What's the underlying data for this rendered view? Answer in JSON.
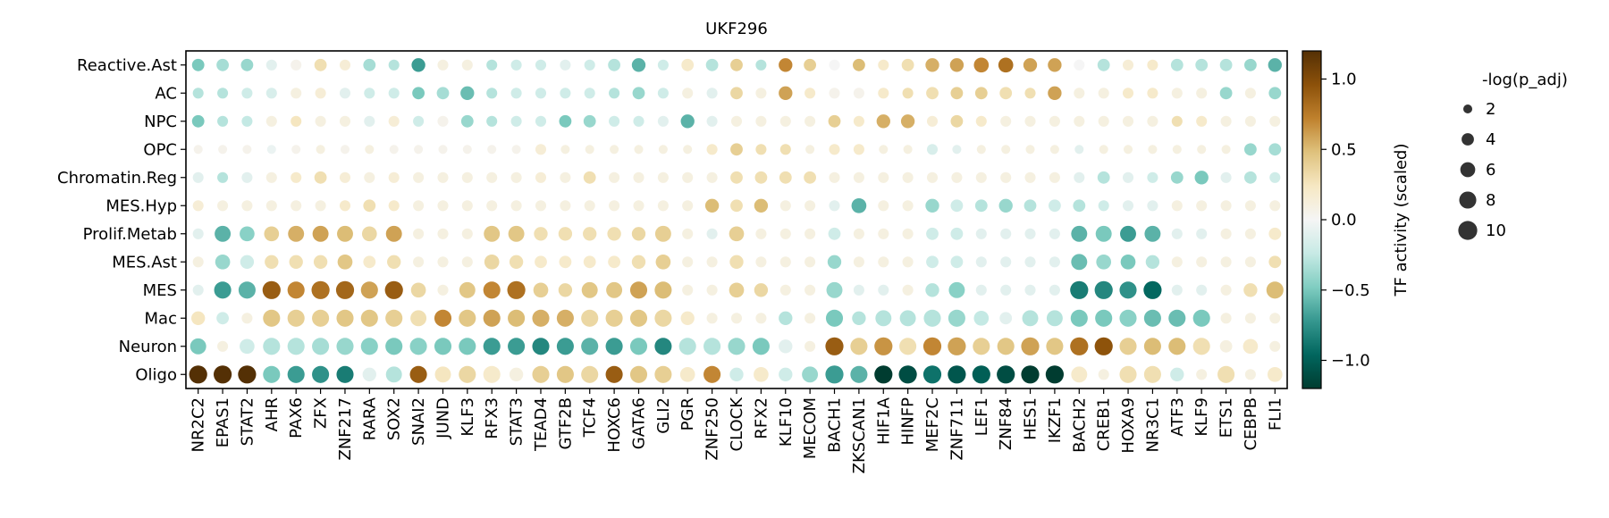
{
  "chart_data": {
    "type": "dotplot",
    "title": "UKF296",
    "x_categories": [
      "NR2C2",
      "EPAS1",
      "STAT2",
      "AHR",
      "PAX6",
      "ZFX",
      "ZNF217",
      "RARA",
      "SOX2",
      "SNAI2",
      "JUND",
      "KLF3",
      "RFX3",
      "STAT3",
      "TEAD4",
      "GTF2B",
      "TCF4",
      "HOXC6",
      "GATA6",
      "GLI2",
      "PGR",
      "ZNF250",
      "CLOCK",
      "RFX2",
      "KLF10",
      "MECOM",
      "BACH1",
      "ZKSCAN1",
      "HIF1A",
      "HINFP",
      "MEF2C",
      "ZNF711",
      "LEF1",
      "ZNF84",
      "HES1",
      "IKZF1",
      "BACH2",
      "CREB1",
      "HOXA9",
      "NR3C1",
      "ATF3",
      "KLF9",
      "ETS1",
      "CEBPB",
      "FLI1"
    ],
    "y_categories": [
      "Reactive.Ast",
      "AC",
      "NPC",
      "OPC",
      "Chromatin.Reg",
      "MES.Hyp",
      "Prolif.Metab",
      "MES.Ast",
      "MES",
      "Mac",
      "Neuron",
      "Oligo"
    ],
    "colorbar": {
      "label": "TF activity (scaled)",
      "range": [
        -1.2,
        1.2
      ],
      "ticks": [
        1.0,
        0.5,
        0.0,
        -0.5,
        -1.0
      ],
      "tick_labels": [
        "1.0",
        "0.5",
        "0.0",
        "−0.5",
        "−1.0"
      ],
      "colormap": "BrBG_r",
      "colors": [
        "#003c30",
        "#01665e",
        "#35978f",
        "#80cdc1",
        "#c7eae5",
        "#f5f5f5",
        "#f6e8c3",
        "#dfc27d",
        "#bf812d",
        "#8c510a",
        "#543005"
      ]
    },
    "size_legend": {
      "title": "-log(p_adj)",
      "values": [
        2,
        4,
        6,
        8,
        10
      ],
      "labels": [
        "2",
        "4",
        "6",
        "8",
        "10"
      ]
    },
    "series": [
      {
        "name": "Reactive.Ast",
        "values": [
          -0.5,
          -0.35,
          -0.4,
          -0.1,
          0.05,
          0.3,
          0.15,
          -0.35,
          -0.3,
          -0.7,
          0.1,
          0.1,
          -0.3,
          -0.2,
          -0.2,
          -0.1,
          -0.2,
          -0.3,
          -0.6,
          -0.2,
          0.2,
          -0.3,
          0.4,
          -0.3,
          0.7,
          0.4,
          0,
          0.5,
          0.2,
          0.3,
          0.55,
          0.6,
          0.7,
          0.8,
          0.6,
          0.6,
          0,
          -0.3,
          0.15,
          0.2,
          -0.3,
          -0.3,
          -0.3,
          -0.4,
          -0.6
        ],
        "sizes": [
          4,
          4,
          4,
          3,
          3,
          4,
          3,
          4,
          3,
          5,
          3,
          3,
          3,
          3,
          3,
          3,
          3,
          4,
          5,
          3,
          4,
          4,
          4,
          3,
          5,
          4,
          3,
          4,
          3,
          4,
          5,
          5,
          6,
          6,
          5,
          5,
          3,
          4,
          3,
          3,
          4,
          4,
          4,
          4,
          5
        ]
      },
      {
        "name": "AC",
        "values": [
          -0.3,
          -0.3,
          -0.2,
          -0.15,
          0.1,
          0.15,
          -0.1,
          -0.2,
          -0.2,
          -0.5,
          -0.35,
          -0.55,
          -0.3,
          -0.2,
          -0.2,
          -0.2,
          -0.2,
          -0.3,
          -0.4,
          -0.2,
          0.1,
          -0.1,
          0.35,
          0.1,
          0.6,
          0.2,
          0.05,
          0.05,
          0.2,
          0.3,
          0.3,
          0.4,
          0.4,
          0.3,
          0.3,
          0.6,
          0.1,
          0.1,
          0.2,
          0.2,
          0.1,
          0.1,
          -0.4,
          0.1,
          -0.4
        ],
        "sizes": [
          3,
          3,
          3,
          3,
          3,
          3,
          3,
          3,
          3,
          4,
          4,
          5,
          3,
          3,
          3,
          3,
          3,
          3,
          4,
          3,
          3,
          3,
          4,
          3,
          5,
          3,
          3,
          3,
          3,
          3,
          4,
          4,
          4,
          4,
          3,
          5,
          3,
          3,
          3,
          3,
          3,
          3,
          4,
          3,
          4
        ]
      },
      {
        "name": "NPC",
        "values": [
          -0.5,
          -0.3,
          -0.25,
          0.1,
          0.25,
          0.1,
          0.1,
          -0.1,
          0.15,
          -0.2,
          0.05,
          -0.4,
          -0.3,
          -0.2,
          -0.2,
          -0.5,
          -0.4,
          -0.2,
          -0.2,
          -0.1,
          -0.6,
          -0.1,
          0.1,
          0.1,
          0.1,
          0.1,
          0.4,
          0.2,
          0.55,
          0.55,
          0.15,
          0.35,
          0.2,
          0.1,
          0.1,
          0.1,
          0.1,
          0.1,
          0.1,
          0.1,
          0.3,
          0.2,
          0.1,
          0.1,
          0.1
        ],
        "sizes": [
          4,
          3,
          3,
          3,
          3,
          3,
          3,
          3,
          3,
          3,
          3,
          4,
          3,
          3,
          3,
          4,
          4,
          3,
          3,
          3,
          5,
          3,
          3,
          3,
          3,
          3,
          4,
          3,
          5,
          5,
          3,
          4,
          3,
          3,
          3,
          3,
          3,
          3,
          3,
          3,
          3,
          3,
          3,
          3,
          3
        ]
      },
      {
        "name": "OPC",
        "values": [
          0.05,
          0.05,
          0.05,
          -0.05,
          0.05,
          0.1,
          0.05,
          0.1,
          0.05,
          0.05,
          0.05,
          0.05,
          0.05,
          0.05,
          0.15,
          0.1,
          0.1,
          0.1,
          0.1,
          0.1,
          0.1,
          0.2,
          0.4,
          0.3,
          0.3,
          0.1,
          0.2,
          0.2,
          0.1,
          0.1,
          -0.15,
          -0.1,
          0.1,
          0.1,
          0.1,
          0.1,
          -0.1,
          0.1,
          0.1,
          0.1,
          0.1,
          0.1,
          0.1,
          -0.4,
          -0.35
        ],
        "sizes": [
          2,
          2,
          2,
          2,
          2,
          2,
          2,
          2,
          2,
          2,
          2,
          2,
          2,
          2,
          3,
          2,
          2,
          2,
          2,
          2,
          2,
          3,
          4,
          3,
          3,
          2,
          3,
          3,
          2,
          2,
          3,
          2,
          2,
          2,
          2,
          2,
          2,
          2,
          2,
          2,
          2,
          2,
          2,
          4,
          4
        ]
      },
      {
        "name": "Chromatin.Reg",
        "values": [
          -0.1,
          -0.3,
          -0.1,
          0.1,
          0.2,
          0.3,
          0.15,
          0.1,
          0.15,
          0.1,
          0.1,
          0.1,
          0.1,
          0.1,
          0.15,
          0.1,
          0.3,
          0.1,
          0.1,
          0.1,
          0.1,
          0.1,
          0.3,
          0.3,
          0.3,
          0.3,
          0.1,
          0.1,
          0.1,
          0.1,
          0.1,
          0.1,
          0.1,
          0.1,
          0.1,
          0.1,
          -0.1,
          -0.3,
          -0.1,
          -0.2,
          -0.4,
          -0.5,
          -0.1,
          -0.3,
          -0.2
        ],
        "sizes": [
          3,
          3,
          3,
          3,
          3,
          4,
          3,
          3,
          3,
          3,
          3,
          3,
          3,
          3,
          3,
          3,
          4,
          3,
          3,
          3,
          3,
          3,
          4,
          4,
          4,
          4,
          3,
          3,
          3,
          3,
          3,
          3,
          3,
          3,
          3,
          3,
          3,
          4,
          3,
          3,
          4,
          5,
          3,
          4,
          3
        ]
      },
      {
        "name": "MES.Hyp",
        "values": [
          0.15,
          0.1,
          0.1,
          0.1,
          0.1,
          0.1,
          0.2,
          0.3,
          0.2,
          0.1,
          0.1,
          0.1,
          0.1,
          0.1,
          0.1,
          0.1,
          0.1,
          0.1,
          0.1,
          0.1,
          0.1,
          0.5,
          0.3,
          0.5,
          0.1,
          0.1,
          -0.1,
          -0.6,
          0.1,
          0.1,
          -0.4,
          -0.2,
          -0.3,
          -0.4,
          -0.3,
          -0.2,
          -0.3,
          -0.2,
          -0.1,
          -0.1,
          0.1,
          0.1,
          0.1,
          0.1,
          0.1
        ],
        "sizes": [
          3,
          3,
          3,
          3,
          3,
          3,
          3,
          4,
          3,
          3,
          3,
          3,
          3,
          3,
          3,
          3,
          3,
          3,
          3,
          3,
          3,
          5,
          4,
          5,
          3,
          3,
          3,
          6,
          3,
          3,
          5,
          4,
          4,
          5,
          4,
          4,
          4,
          3,
          3,
          3,
          3,
          3,
          3,
          3,
          3
        ]
      },
      {
        "name": "Prolif.Metab",
        "values": [
          -0.1,
          -0.6,
          -0.45,
          0.4,
          0.55,
          0.6,
          0.5,
          0.35,
          0.6,
          0.1,
          0.1,
          0.1,
          0.45,
          0.45,
          0.3,
          0.3,
          0.3,
          0.3,
          0.35,
          0.4,
          0.1,
          -0.1,
          0.4,
          0.1,
          0.1,
          0.1,
          -0.2,
          0.1,
          0.1,
          0.1,
          -0.2,
          -0.2,
          -0.1,
          -0.1,
          -0.1,
          -0.1,
          -0.6,
          -0.5,
          -0.7,
          -0.6,
          -0.1,
          -0.1,
          0.1,
          0.1,
          0.2
        ],
        "sizes": [
          3,
          7,
          6,
          6,
          7,
          7,
          7,
          6,
          7,
          3,
          3,
          3,
          7,
          7,
          5,
          5,
          5,
          5,
          5,
          7,
          3,
          3,
          6,
          3,
          3,
          3,
          4,
          3,
          3,
          3,
          4,
          4,
          3,
          3,
          3,
          3,
          7,
          7,
          7,
          7,
          3,
          3,
          3,
          3,
          4
        ]
      },
      {
        "name": "MES.Ast",
        "values": [
          0.1,
          -0.4,
          -0.2,
          0.3,
          0.3,
          0.3,
          0.45,
          0.2,
          0.3,
          0.1,
          0.1,
          0.1,
          0.35,
          0.3,
          0.2,
          0.2,
          0.2,
          0.2,
          0.3,
          0.4,
          0.1,
          0.1,
          0.3,
          0.1,
          0.1,
          0.1,
          -0.4,
          0.1,
          0.1,
          0.1,
          -0.2,
          -0.2,
          -0.1,
          -0.1,
          -0.1,
          -0.1,
          -0.55,
          -0.4,
          -0.5,
          -0.3,
          0.1,
          0.1,
          0.1,
          0.1,
          0.3
        ],
        "sizes": [
          3,
          6,
          5,
          5,
          5,
          5,
          6,
          4,
          5,
          3,
          3,
          3,
          6,
          5,
          4,
          4,
          4,
          4,
          5,
          6,
          3,
          3,
          5,
          3,
          3,
          3,
          5,
          3,
          3,
          3,
          4,
          4,
          3,
          3,
          3,
          3,
          7,
          6,
          6,
          5,
          3,
          3,
          3,
          3,
          4
        ]
      },
      {
        "name": "MES",
        "values": [
          -0.1,
          -0.7,
          -0.6,
          0.9,
          0.7,
          0.8,
          0.85,
          0.6,
          0.9,
          0.35,
          0.1,
          0.45,
          0.7,
          0.8,
          0.4,
          0.35,
          0.45,
          0.45,
          0.6,
          0.5,
          0.1,
          0.1,
          0.4,
          0.35,
          0.1,
          0.1,
          -0.4,
          -0.1,
          -0.1,
          0.1,
          -0.3,
          -0.45,
          -0.1,
          -0.1,
          -0.1,
          -0.1,
          -0.85,
          -0.8,
          -0.75,
          -0.95,
          -0.1,
          -0.1,
          0.1,
          0.3,
          0.5
        ],
        "sizes": [
          3,
          8,
          8,
          9,
          8,
          9,
          9,
          8,
          9,
          6,
          3,
          7,
          8,
          9,
          6,
          5,
          7,
          7,
          8,
          8,
          3,
          3,
          6,
          5,
          3,
          3,
          7,
          3,
          3,
          3,
          5,
          7,
          3,
          3,
          3,
          3,
          9,
          9,
          8,
          9,
          3,
          3,
          3,
          5,
          8
        ]
      },
      {
        "name": "Mac",
        "values": [
          0.25,
          -0.2,
          0.1,
          0.45,
          0.4,
          0.4,
          0.45,
          0.45,
          0.4,
          0.3,
          0.7,
          0.45,
          0.6,
          0.5,
          0.55,
          0.55,
          0.35,
          0.4,
          0.45,
          0.35,
          0.2,
          0.1,
          0.1,
          0.1,
          -0.3,
          0.1,
          -0.5,
          -0.3,
          -0.3,
          -0.3,
          -0.3,
          -0.4,
          -0.25,
          -0.1,
          -0.3,
          -0.3,
          -0.5,
          -0.5,
          -0.45,
          -0.55,
          -0.55,
          -0.5,
          0.1,
          0.1,
          0.1
        ],
        "sizes": [
          5,
          4,
          3,
          8,
          8,
          8,
          8,
          8,
          8,
          7,
          8,
          8,
          8,
          8,
          8,
          8,
          8,
          8,
          8,
          8,
          5,
          3,
          3,
          3,
          5,
          3,
          8,
          5,
          7,
          7,
          8,
          8,
          6,
          4,
          7,
          7,
          8,
          8,
          8,
          8,
          8,
          8,
          3,
          3,
          3
        ]
      },
      {
        "name": "Neuron",
        "values": [
          -0.5,
          0.1,
          -0.2,
          -0.3,
          -0.3,
          -0.35,
          -0.4,
          -0.45,
          -0.5,
          -0.45,
          -0.5,
          -0.5,
          -0.7,
          -0.7,
          -0.8,
          -0.7,
          -0.6,
          -0.7,
          -0.5,
          -0.8,
          -0.3,
          -0.3,
          -0.4,
          -0.5,
          -0.1,
          0.1,
          0.9,
          0.4,
          0.65,
          0.3,
          0.7,
          0.6,
          0.4,
          0.45,
          0.6,
          0.45,
          0.8,
          0.95,
          0.4,
          0.5,
          0.5,
          0.3,
          0.1,
          0.2,
          0.1
        ],
        "sizes": [
          7,
          3,
          6,
          8,
          8,
          8,
          8,
          8,
          8,
          8,
          8,
          8,
          8,
          8,
          8,
          8,
          8,
          8,
          8,
          8,
          8,
          8,
          8,
          8,
          5,
          3,
          9,
          8,
          9,
          8,
          9,
          9,
          8,
          8,
          9,
          8,
          9,
          9,
          8,
          8,
          8,
          8,
          4,
          6,
          3
        ]
      },
      {
        "name": "Oligo",
        "values": [
          1.2,
          1.2,
          1.2,
          -0.5,
          -0.7,
          -0.75,
          -0.85,
          -0.1,
          -0.3,
          0.9,
          0.25,
          0.35,
          0.2,
          0.1,
          0.4,
          0.45,
          0.35,
          0.9,
          0.45,
          0.4,
          0.2,
          0.7,
          -0.2,
          0.2,
          -0.2,
          -0.4,
          -0.7,
          -0.6,
          -1.2,
          -1.1,
          -0.9,
          -1.05,
          -1.0,
          -1.1,
          -1.2,
          -1.2,
          0.2,
          0.1,
          0.3,
          0.3,
          -0.2,
          0.1,
          0.3,
          0.1,
          0.2
        ],
        "sizes": [
          9,
          9,
          9,
          8,
          8,
          8,
          8,
          5,
          7,
          8,
          7,
          8,
          8,
          5,
          8,
          8,
          8,
          8,
          8,
          8,
          6,
          8,
          5,
          6,
          5,
          7,
          9,
          8,
          9,
          9,
          9,
          9,
          9,
          9,
          9,
          9,
          7,
          3,
          8,
          8,
          5,
          3,
          8,
          3,
          6
        ]
      }
    ]
  }
}
